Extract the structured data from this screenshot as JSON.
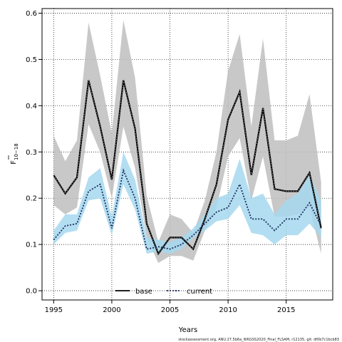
{
  "chart_data": {
    "type": "line",
    "xlabel": "Years",
    "ylabel_main": "F",
    "ylabel_sub": "10−18",
    "xlim": [
      1994,
      2019
    ],
    "ylim": [
      -0.02,
      0.61
    ],
    "xticks": [
      1995,
      2000,
      2005,
      2010,
      2015
    ],
    "yticks": [
      0.0,
      0.1,
      0.2,
      0.3,
      0.4,
      0.5,
      0.6
    ],
    "grid": true,
    "legend_position": "bottom-center",
    "x": [
      1995,
      1996,
      1997,
      1998,
      1999,
      2000,
      2001,
      2002,
      2003,
      2004,
      2005,
      2006,
      2007,
      2008,
      2009,
      2010,
      2011,
      2012,
      2013,
      2014,
      2015,
      2016,
      2017,
      2018
    ],
    "series": [
      {
        "name": "base",
        "color": "#000000",
        "band_color": "#bebebe",
        "line_style": "solid",
        "values": [
          0.25,
          0.21,
          0.245,
          0.455,
          0.355,
          0.24,
          0.455,
          0.35,
          0.145,
          0.08,
          0.115,
          0.115,
          0.09,
          0.155,
          0.23,
          0.37,
          0.43,
          0.25,
          0.395,
          0.22,
          0.215,
          0.215,
          0.255,
          0.135
        ],
        "lower": [
          0.185,
          0.165,
          0.18,
          0.36,
          0.3,
          0.2,
          0.355,
          0.265,
          0.115,
          0.06,
          0.075,
          0.075,
          0.065,
          0.13,
          0.18,
          0.29,
          0.33,
          0.195,
          0.29,
          0.16,
          0.16,
          0.165,
          0.18,
          0.08
        ],
        "upper": [
          0.335,
          0.28,
          0.325,
          0.58,
          0.465,
          0.34,
          0.585,
          0.46,
          0.205,
          0.105,
          0.165,
          0.155,
          0.125,
          0.195,
          0.3,
          0.475,
          0.555,
          0.355,
          0.545,
          0.325,
          0.325,
          0.335,
          0.425,
          0.235
        ]
      },
      {
        "name": "current",
        "color": "#1b2f5a",
        "band_color": "#a6d8f0",
        "line_style": "dotted",
        "values": [
          0.11,
          0.14,
          0.145,
          0.215,
          0.23,
          0.135,
          0.26,
          0.2,
          0.09,
          0.095,
          0.09,
          0.1,
          0.12,
          0.145,
          0.17,
          0.18,
          0.23,
          0.155,
          0.155,
          0.13,
          0.155,
          0.155,
          0.19,
          0.14
        ],
        "lower": [
          0.1,
          0.125,
          0.13,
          0.195,
          0.2,
          0.12,
          0.23,
          0.175,
          0.08,
          0.085,
          0.08,
          0.09,
          0.115,
          0.13,
          0.15,
          0.155,
          0.185,
          0.125,
          0.12,
          0.1,
          0.12,
          0.12,
          0.145,
          0.115
        ],
        "upper": [
          0.13,
          0.165,
          0.165,
          0.245,
          0.265,
          0.16,
          0.3,
          0.24,
          0.115,
          0.11,
          0.105,
          0.115,
          0.135,
          0.165,
          0.2,
          0.21,
          0.285,
          0.2,
          0.21,
          0.165,
          0.195,
          0.21,
          0.25,
          0.195
        ]
      }
    ]
  },
  "footer": "stockassessment.org, ANU.27.5b6a_WKGSS2020_Final_FLSAM, r12135, git: df0b7c1bcb83"
}
